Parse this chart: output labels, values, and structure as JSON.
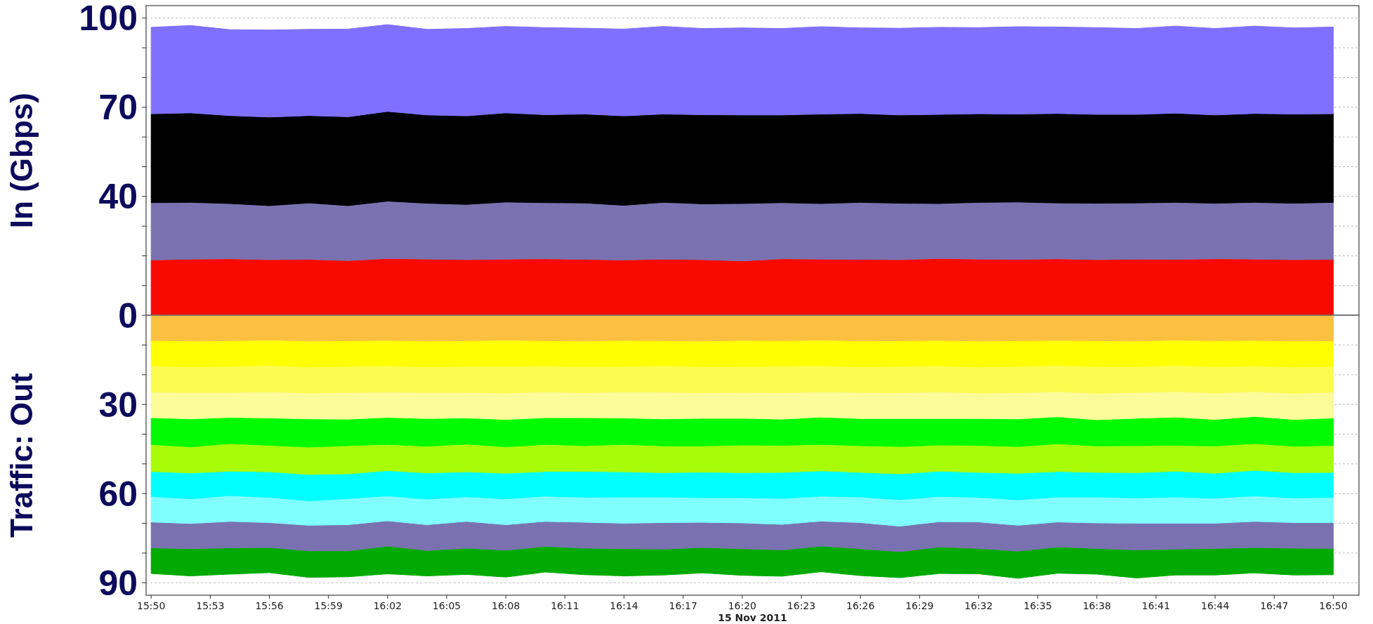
{
  "chart_data": [
    {
      "type": "area",
      "stacked": true,
      "ylabel": "In (Gbps)",
      "grid": "y",
      "tick_labels": "y",
      "x": [
        15.8333,
        15.8667,
        15.9,
        15.9333,
        15.9667,
        16,
        16.0333,
        16.0667,
        16.1,
        16.1333,
        16.1667,
        16.2,
        16.2333,
        16.2667,
        16.3,
        16.3333,
        16.3667,
        16.4,
        16.4333,
        16.4667,
        16.5,
        16.5333,
        16.5667,
        16.6,
        16.6333,
        16.6667,
        16.7,
        16.7333,
        16.7667,
        16.8,
        16.8333
      ],
      "xlim": [
        15.829,
        16.855
      ],
      "ylim": [
        0,
        104.2
      ],
      "yticks": [
        100,
        {
          "value": 90,
          "label": null
        },
        {
          "value": 80,
          "label": null
        },
        70,
        {
          "value": 60,
          "label": null
        },
        {
          "value": 50,
          "label": null
        },
        40,
        {
          "value": 30,
          "label": null
        },
        {
          "value": 20,
          "label": null
        },
        {
          "value": 10,
          "label": null
        },
        0
      ],
      "series": [
        {
          "color": "#f80a00",
          "values": [
            18.6,
            18.9,
            19.0,
            18.7,
            18.8,
            18.4,
            19.1,
            18.9,
            18.7,
            18.9,
            19.0,
            18.8,
            18.6,
            18.9,
            18.7,
            18.3,
            19.0,
            18.9,
            18.8,
            18.7,
            19.1,
            18.9,
            18.8,
            19.0,
            18.7,
            18.9,
            18.8,
            19.0,
            18.9,
            18.7,
            18.8
          ]
        },
        {
          "color": "#7a72b0",
          "values": [
            19.3,
            19.1,
            18.6,
            18.2,
            19.0,
            18.5,
            19.3,
            18.8,
            18.6,
            19.2,
            18.9,
            19.0,
            18.4,
            19.1,
            18.8,
            19.3,
            18.9,
            18.7,
            19.2,
            19.0,
            18.5,
            19.1,
            19.3,
            18.8,
            19.0,
            18.9,
            19.2,
            18.7,
            19.1,
            19.0,
            19.2
          ]
        },
        {
          "color": "#000000",
          "values": [
            29.9,
            30.1,
            29.6,
            29.8,
            29.4,
            29.9,
            30.2,
            29.7,
            29.8,
            30.0,
            29.6,
            29.9,
            30.1,
            29.7,
            30.0,
            29.8,
            29.5,
            30.1,
            29.9,
            29.7,
            30.0,
            29.8,
            29.6,
            30.1,
            29.9,
            29.8,
            30.0,
            29.7,
            29.9,
            30.0,
            29.8
          ]
        },
        {
          "color": "#8070ff",
          "values": [
            29.1,
            29.4,
            28.9,
            29.3,
            29.0,
            29.5,
            29.2,
            28.8,
            29.4,
            29.1,
            29.3,
            28.9,
            29.2,
            29.5,
            29.0,
            29.3,
            29.1,
            29.4,
            28.8,
            29.2,
            29.3,
            29.0,
            29.4,
            29.1,
            29.2,
            28.9,
            29.3,
            29.1,
            29.4,
            29.0,
            29.2
          ]
        }
      ]
    },
    {
      "type": "area",
      "stacked": true,
      "xlabel": "15 Nov 2011",
      "ylabel": "Traffic: Out",
      "grid": "y",
      "x": [
        15.8333,
        15.8667,
        15.9,
        15.9333,
        15.9667,
        16,
        16.0333,
        16.0667,
        16.1,
        16.1333,
        16.1667,
        16.2,
        16.2333,
        16.2667,
        16.3,
        16.3333,
        16.3667,
        16.4,
        16.4333,
        16.4667,
        16.5,
        16.5333,
        16.5667,
        16.6,
        16.6333,
        16.6667,
        16.7,
        16.7333,
        16.7667,
        16.8,
        16.8333
      ],
      "xlim": [
        15.829,
        16.855
      ],
      "xticks": [
        {
          "value": 15.8333,
          "label": "15:50"
        },
        {
          "value": 15.8833,
          "label": "15:53"
        },
        {
          "value": 15.9333,
          "label": "15:56"
        },
        {
          "value": 15.9833,
          "label": "15:59"
        },
        {
          "value": 16.0333,
          "label": "16:02"
        },
        {
          "value": 16.0833,
          "label": "16:05"
        },
        {
          "value": 16.1333,
          "label": "16:08"
        },
        {
          "value": 16.1833,
          "label": "16:11"
        },
        {
          "value": 16.2333,
          "label": "16:14"
        },
        {
          "value": 16.2833,
          "label": "16:17"
        },
        {
          "value": 16.3333,
          "label": "16:20"
        },
        {
          "value": 16.3833,
          "label": "16:23"
        },
        {
          "value": 16.4333,
          "label": "16:26"
        },
        {
          "value": 16.4833,
          "label": "16:29"
        },
        {
          "value": 16.5333,
          "label": "16:32"
        },
        {
          "value": 16.5833,
          "label": "16:35"
        },
        {
          "value": 16.6333,
          "label": "16:38"
        },
        {
          "value": 16.6833,
          "label": "16:41"
        },
        {
          "value": 16.7333,
          "label": "16:44"
        },
        {
          "value": 16.7833,
          "label": "16:47"
        },
        {
          "value": 16.8333,
          "label": "16:50"
        }
      ],
      "ylim": [
        -94.2,
        0
      ],
      "yticks": [
        {
          "value": -10,
          "label": null
        },
        {
          "value": -20,
          "label": null
        },
        {
          "value": -30,
          "label": "30"
        },
        {
          "value": -40,
          "label": null
        },
        {
          "value": -50,
          "label": null
        },
        {
          "value": -60,
          "label": "60"
        },
        {
          "value": -70,
          "label": null
        },
        {
          "value": -80,
          "label": null
        },
        {
          "value": -90,
          "label": "90"
        }
      ],
      "series": [
        {
          "color": "#fcc040",
          "values": [
            -8.7,
            -8.9,
            -8.8,
            -8.6,
            -8.9,
            -8.8,
            -8.7,
            -8.9,
            -8.8,
            -8.6,
            -8.8,
            -8.9,
            -8.7,
            -8.8,
            -8.9,
            -8.7,
            -8.8,
            -8.6,
            -8.9,
            -8.8,
            -8.7,
            -8.9,
            -8.8,
            -8.7,
            -8.8,
            -8.9,
            -8.6,
            -8.8,
            -8.7,
            -8.9,
            -8.8
          ]
        },
        {
          "color": "#ffff00",
          "values": [
            -8.5,
            -8.7,
            -8.6,
            -8.4,
            -8.8,
            -8.6,
            -8.5,
            -8.7,
            -8.6,
            -8.8,
            -8.5,
            -8.6,
            -8.7,
            -8.4,
            -8.6,
            -8.8,
            -8.5,
            -8.6,
            -8.7,
            -8.6,
            -8.5,
            -8.8,
            -8.6,
            -8.4,
            -8.7,
            -8.6,
            -8.5,
            -8.7,
            -8.6,
            -8.8,
            -8.6
          ]
        },
        {
          "color": "#fbfb50",
          "values": [
            -8.9,
            -8.6,
            -8.8,
            -9.0,
            -8.7,
            -8.8,
            -8.9,
            -8.6,
            -8.8,
            -9.0,
            -8.7,
            -8.8,
            -8.6,
            -8.9,
            -8.8,
            -8.7,
            -9.0,
            -8.8,
            -8.6,
            -8.9,
            -8.8,
            -8.7,
            -8.9,
            -8.8,
            -9.0,
            -8.7,
            -8.8,
            -8.9,
            -8.6,
            -8.8,
            -8.7
          ]
        },
        {
          "color": "#fbfb9a",
          "values": [
            -8.6,
            -8.9,
            -8.4,
            -8.8,
            -8.7,
            -9.0,
            -8.5,
            -8.8,
            -8.6,
            -8.9,
            -8.7,
            -8.4,
            -8.8,
            -9.0,
            -8.6,
            -8.7,
            -8.9,
            -8.5,
            -8.8,
            -8.7,
            -9.0,
            -8.6,
            -8.8,
            -8.5,
            -8.9,
            -8.7,
            -8.6,
            -8.9,
            -8.4,
            -8.8,
            -8.7
          ]
        },
        {
          "color": "#00fa00",
          "values": [
            -9.0,
            -9.4,
            -8.8,
            -9.2,
            -9.5,
            -8.9,
            -9.1,
            -9.3,
            -8.8,
            -9.2,
            -9.0,
            -9.4,
            -8.9,
            -9.1,
            -9.3,
            -9.0,
            -8.8,
            -9.2,
            -9.1,
            -9.4,
            -8.9,
            -9.0,
            -9.3,
            -9.1,
            -8.8,
            -9.2,
            -9.5,
            -8.9,
            -9.1,
            -9.0,
            -9.2
          ]
        },
        {
          "color": "#a8fc08",
          "values": [
            -9.1,
            -8.8,
            -9.3,
            -8.9,
            -9.2,
            -9.5,
            -8.8,
            -9.0,
            -9.3,
            -8.9,
            -9.1,
            -8.7,
            -9.2,
            -9.0,
            -8.8,
            -9.3,
            -9.1,
            -8.9,
            -9.0,
            -9.2,
            -8.8,
            -9.1,
            -9.0,
            -9.3,
            -8.9,
            -9.1,
            -8.7,
            -9.2,
            -9.0,
            -8.9,
            -9.1
          ]
        },
        {
          "color": "#00ffff",
          "values": [
            -8.4,
            -8.7,
            -8.2,
            -8.6,
            -8.9,
            -8.3,
            -8.5,
            -8.8,
            -8.4,
            -8.6,
            -8.3,
            -8.7,
            -8.5,
            -8.2,
            -8.6,
            -8.4,
            -8.8,
            -8.5,
            -8.3,
            -8.7,
            -8.5,
            -8.4,
            -8.9,
            -8.6,
            -8.3,
            -8.5,
            -8.7,
            -8.4,
            -8.6,
            -8.5,
            -8.4
          ]
        },
        {
          "color": "#80ffff",
          "values": [
            -8.6,
            -8.3,
            -8.7,
            -8.5,
            -8.2,
            -8.8,
            -8.4,
            -8.6,
            -8.3,
            -8.7,
            -8.5,
            -8.4,
            -8.8,
            -8.6,
            -8.3,
            -8.5,
            -8.7,
            -8.4,
            -8.6,
            -8.9,
            -8.5,
            -8.3,
            -8.6,
            -8.4,
            -8.7,
            -8.5,
            -8.8,
            -8.4,
            -8.6,
            -8.3,
            -8.5
          ]
        },
        {
          "color": "#7a72b0",
          "values": [
            -8.7,
            -8.5,
            -8.9,
            -8.4,
            -8.6,
            -8.8,
            -8.5,
            -8.7,
            -9.0,
            -8.6,
            -8.4,
            -8.7,
            -8.6,
            -8.9,
            -8.5,
            -8.7,
            -8.6,
            -8.4,
            -8.8,
            -8.6,
            -8.5,
            -8.9,
            -8.7,
            -8.4,
            -8.6,
            -9.0,
            -8.7,
            -8.5,
            -8.8,
            -8.6,
            -8.7
          ]
        },
        {
          "color": "#00aa00",
          "values": [
            -8.4,
            -8.9,
            -8.6,
            -8.2,
            -8.7,
            -8.5,
            -9.1,
            -8.3,
            -8.6,
            -8.8,
            -8.4,
            -8.7,
            -8.9,
            -8.5,
            -8.3,
            -8.7,
            -8.6,
            -8.4,
            -8.8,
            -8.5,
            -8.7,
            -8.3,
            -8.9,
            -8.6,
            -8.4,
            -9.2,
            -8.5,
            -8.7,
            -8.3,
            -8.8,
            -8.6
          ]
        }
      ]
    }
  ]
}
